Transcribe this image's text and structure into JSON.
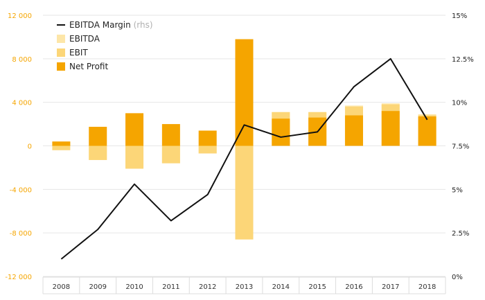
{
  "chart_data": {
    "type": "bar",
    "categories": [
      "2008",
      "2009",
      "2010",
      "2011",
      "2012",
      "2013",
      "2014",
      "2015",
      "2016",
      "2017",
      "2018"
    ],
    "series": [
      {
        "name": "EBITDA",
        "axis": "left",
        "color": "#fde6a8",
        "values": [
          100,
          -1300,
          -2000,
          -1600,
          -700,
          -8600,
          3100,
          3100,
          3700,
          3900,
          2900
        ]
      },
      {
        "name": "EBIT",
        "axis": "left",
        "color": "#fcd678",
        "values": [
          -400,
          -1300,
          -2100,
          -1600,
          -700,
          -8600,
          3100,
          3100,
          3600,
          3800,
          2800
        ]
      },
      {
        "name": "Net Profit",
        "axis": "left",
        "color": "#f5a500",
        "values": [
          400,
          1750,
          3000,
          2000,
          1400,
          9800,
          2500,
          2600,
          2800,
          3200,
          2700
        ]
      },
      {
        "name": "EBITDA Margin",
        "axis": "right",
        "type": "line",
        "color": "#111111",
        "values": [
          1.0,
          2.7,
          5.3,
          3.2,
          4.7,
          8.7,
          8.0,
          8.3,
          10.9,
          12.5,
          9.0
        ]
      }
    ],
    "left_axis": {
      "ylim": [
        -12000,
        12000
      ],
      "ticks": [
        -12000,
        -8000,
        -4000,
        0,
        4000,
        8000,
        12000
      ],
      "tick_labels": [
        "-12 000",
        "-8 000",
        "-4 000",
        "0",
        "4 000",
        "8 000",
        "12 000"
      ]
    },
    "right_axis": {
      "ylim": [
        0,
        15
      ],
      "ticks": [
        0,
        2.5,
        5,
        7.5,
        10,
        12.5,
        15
      ],
      "tick_labels": [
        "0%",
        "2.5%",
        "5%",
        "7.5%",
        "10%",
        "12.5%",
        "15%"
      ]
    },
    "legend": {
      "position": "top-left",
      "items": [
        {
          "label": "EBITDA Margin",
          "note": "(rhs)",
          "kind": "line",
          "color": "#111111"
        },
        {
          "label": "EBITDA",
          "kind": "box",
          "color": "#fde6a8"
        },
        {
          "label": "EBIT",
          "kind": "box",
          "color": "#fcd678"
        },
        {
          "label": "Net Profit",
          "kind": "box",
          "color": "#f5a500"
        }
      ]
    },
    "grid": true
  }
}
